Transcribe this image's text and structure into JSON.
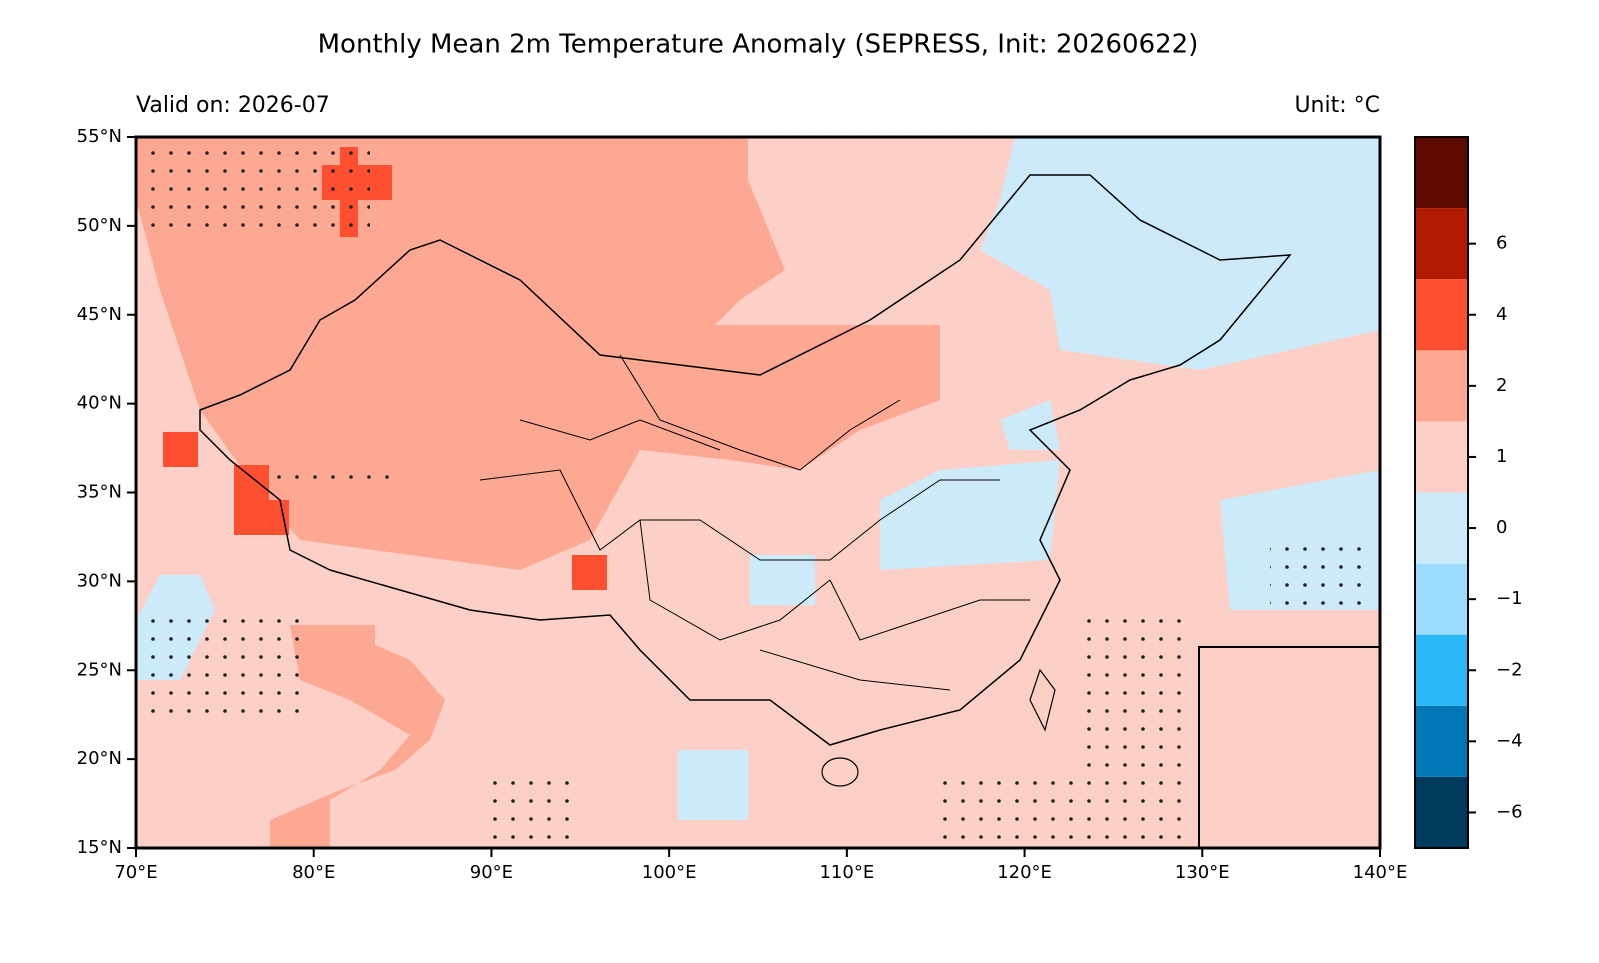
{
  "chart_data": {
    "type": "map",
    "title": "Monthly Mean 2m Temperature Anomaly (SEPRESS, Init: 20260622)",
    "subtitle": "Valid on: 2026-07",
    "unit": "Unit: °C",
    "xlim": [
      70,
      140
    ],
    "ylim": [
      15,
      55
    ],
    "xticks": [
      {
        "value": 70,
        "label": "70°E"
      },
      {
        "value": 80,
        "label": "80°E"
      },
      {
        "value": 90,
        "label": "90°E"
      },
      {
        "value": 100,
        "label": "100°E"
      },
      {
        "value": 110,
        "label": "110°E"
      },
      {
        "value": 120,
        "label": "120°E"
      },
      {
        "value": 130,
        "label": "130°E"
      },
      {
        "value": 140,
        "label": "140°E"
      }
    ],
    "yticks": [
      {
        "value": 15,
        "label": "15°N"
      },
      {
        "value": 20,
        "label": "20°N"
      },
      {
        "value": 25,
        "label": "25°N"
      },
      {
        "value": 30,
        "label": "30°N"
      },
      {
        "value": 35,
        "label": "35°N"
      },
      {
        "value": 40,
        "label": "40°N"
      },
      {
        "value": 45,
        "label": "45°N"
      },
      {
        "value": 50,
        "label": "50°N"
      },
      {
        "value": 55,
        "label": "55°N"
      }
    ],
    "colorbar": {
      "colors": [
        "#003a5c",
        "#0077b6",
        "#2ab7f6",
        "#9adbff",
        "#cdeafb",
        "#fdd0c7",
        "#fca893",
        "#fe5031",
        "#b31b00",
        "#5c0a00"
      ],
      "ticks": [
        {
          "value": -6,
          "label": "−6"
        },
        {
          "value": -4,
          "label": "−4"
        },
        {
          "value": -2,
          "label": "−2"
        },
        {
          "value": -1,
          "label": "−1"
        },
        0,
        1,
        2,
        4,
        6
      ]
    }
  }
}
